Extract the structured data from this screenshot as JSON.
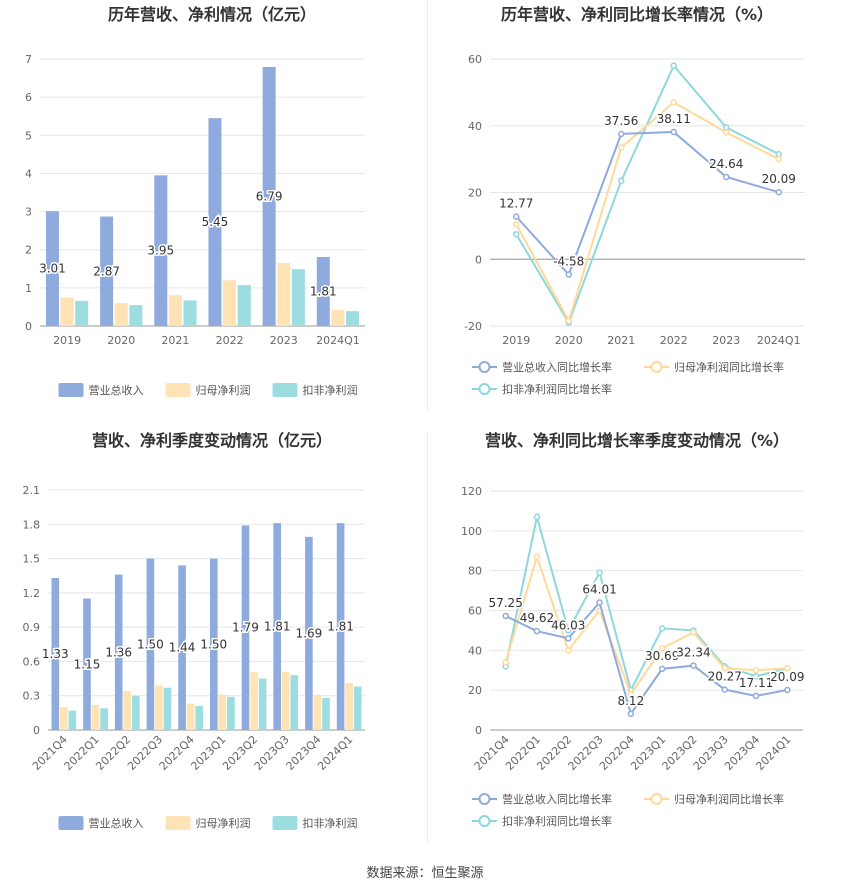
{
  "source": "数据来源：恒生聚源",
  "chart_data": [
    {
      "type": "bar",
      "title": "历年营收、净利情况（亿元）",
      "categories": [
        "2019",
        "2020",
        "2021",
        "2022",
        "2023",
        "2024Q1"
      ],
      "series": [
        {
          "name": "营业总收入",
          "color": "#8faadc",
          "values": [
            3.01,
            2.87,
            3.95,
            5.45,
            6.79,
            1.81
          ],
          "labels": [
            "3.01",
            "2.87",
            "3.95",
            "5.45",
            "6.79",
            "1.81"
          ]
        },
        {
          "name": "归母净利润",
          "color": "#ffe3b5",
          "values": [
            0.75,
            0.6,
            0.81,
            1.2,
            1.65,
            0.42
          ]
        },
        {
          "name": "扣非净利润",
          "color": "#9cdde0",
          "values": [
            0.66,
            0.55,
            0.67,
            1.07,
            1.49,
            0.39
          ]
        }
      ],
      "ylim": [
        0,
        7
      ],
      "yticks": [
        "0",
        "1",
        "2",
        "3",
        "4",
        "5",
        "6",
        "7"
      ],
      "grid": true,
      "legend": "bottom"
    },
    {
      "type": "line",
      "title": "历年营收、净利同比增长率情况（%）",
      "categories": [
        "2019",
        "2020",
        "2021",
        "2022",
        "2023",
        "2024Q1"
      ],
      "series": [
        {
          "name": "营业总收入同比增长率",
          "color": "#8faadc",
          "values": [
            12.77,
            -4.58,
            37.56,
            38.11,
            24.64,
            20.09
          ],
          "labels": [
            "12.77",
            "-4.58",
            "37.56",
            "38.11",
            "24.64",
            "20.09"
          ]
        },
        {
          "name": "归母净利润同比增长率",
          "color": "#ffd99a",
          "values": [
            10.5,
            -18.5,
            33.5,
            47.0,
            38.0,
            30.0
          ]
        },
        {
          "name": "扣非净利润同比增长率",
          "color": "#8ed8dc",
          "values": [
            7.5,
            -19.0,
            23.5,
            58.0,
            39.5,
            31.5
          ]
        }
      ],
      "ylim": [
        -20,
        60
      ],
      "yticks": [
        "-20",
        "0",
        "20",
        "40",
        "60"
      ],
      "grid": true,
      "legend": "bottom"
    },
    {
      "type": "bar",
      "title": "营收、净利季度变动情况（亿元）",
      "categories": [
        "2021Q4",
        "2022Q1",
        "2022Q2",
        "2022Q3",
        "2022Q4",
        "2023Q1",
        "2023Q2",
        "2023Q3",
        "2023Q4",
        "2024Q1"
      ],
      "series": [
        {
          "name": "营业总收入",
          "color": "#8faadc",
          "values": [
            1.33,
            1.15,
            1.36,
            1.5,
            1.44,
            1.5,
            1.79,
            1.81,
            1.69,
            1.81
          ],
          "labels": [
            "1.33",
            "1.15",
            "1.36",
            "1.50",
            "1.44",
            "1.50",
            "1.79",
            "1.81",
            "1.69",
            "1.81"
          ]
        },
        {
          "name": "归母净利润",
          "color": "#ffe3b5",
          "values": [
            0.2,
            0.22,
            0.34,
            0.39,
            0.23,
            0.31,
            0.51,
            0.51,
            0.31,
            0.41
          ]
        },
        {
          "name": "扣非净利润",
          "color": "#9cdde0",
          "values": [
            0.17,
            0.19,
            0.3,
            0.37,
            0.21,
            0.29,
            0.45,
            0.48,
            0.28,
            0.38
          ]
        }
      ],
      "ylim": [
        0,
        2.1
      ],
      "yticks": [
        "0",
        "0.3",
        "0.6",
        "0.9",
        "1.2",
        "1.5",
        "1.8",
        "2.1"
      ],
      "grid": true,
      "legend": "bottom"
    },
    {
      "type": "line",
      "title": "营收、净利同比增长率季度变动情况（%）",
      "categories": [
        "2021Q4",
        "2022Q1",
        "2022Q2",
        "2022Q3",
        "2022Q4",
        "2023Q1",
        "2023Q2",
        "2023Q3",
        "2023Q4",
        "2024Q1"
      ],
      "series": [
        {
          "name": "营业总收入同比增长率",
          "color": "#8faadc",
          "values": [
            57.25,
            49.62,
            46.03,
            64.01,
            8.12,
            30.69,
            32.34,
            20.27,
            17.11,
            20.09
          ],
          "labels": [
            "57.25",
            "49.62",
            "46.03",
            "64.01",
            "8.12",
            "30.69",
            "32.34",
            "20.27",
            "17.11",
            "20.09"
          ]
        },
        {
          "name": "归母净利润同比增长率",
          "color": "#ffd99a",
          "values": [
            34,
            87,
            40,
            60,
            18,
            41,
            49,
            31,
            30,
            31
          ]
        },
        {
          "name": "扣非净利润同比增长率",
          "color": "#8ed8dc",
          "values": [
            32,
            107,
            50,
            79,
            20,
            51,
            50,
            32,
            27,
            31
          ]
        }
      ],
      "ylim": [
        0,
        120
      ],
      "yticks": [
        "0",
        "20",
        "40",
        "60",
        "80",
        "100",
        "120"
      ],
      "grid": true,
      "legend": "bottom"
    }
  ]
}
